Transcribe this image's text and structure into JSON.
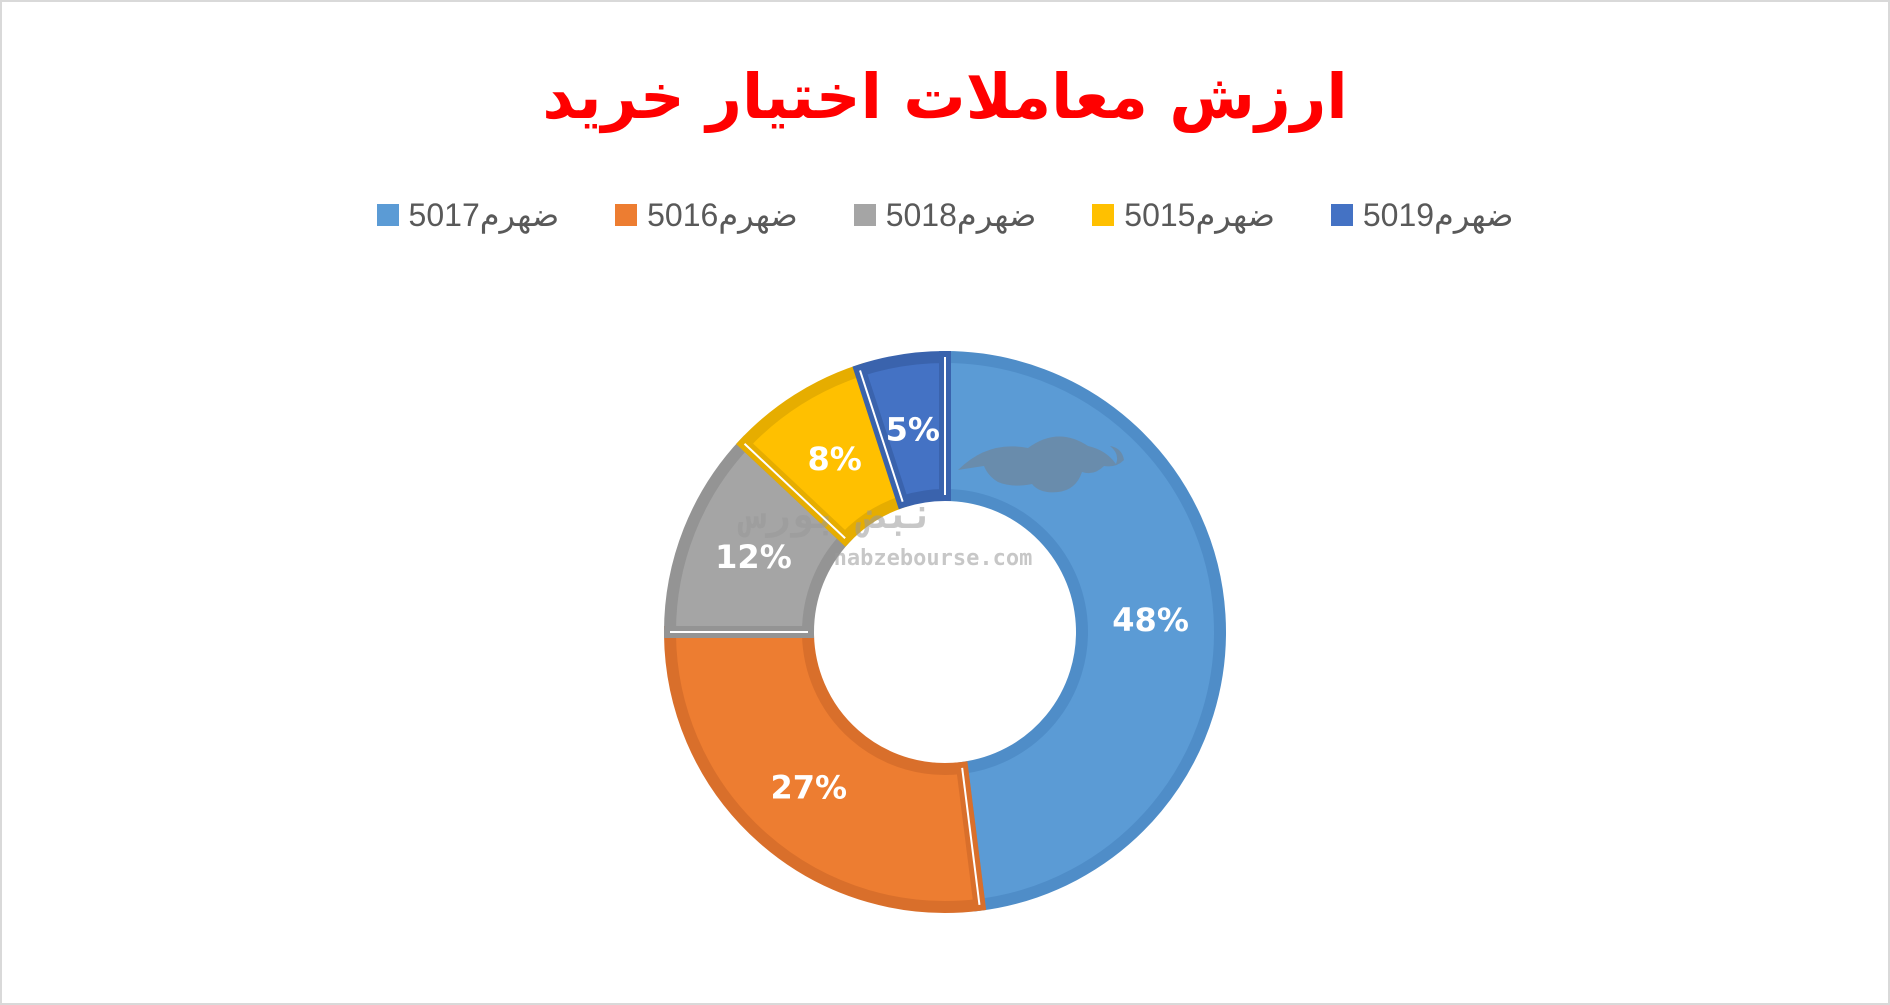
{
  "title": "ارزش معاملات اختیار خرید",
  "watermark": {
    "logo_text": "نبض بورس",
    "url": "nabzebourse.com"
  },
  "chart_data": {
    "type": "pie",
    "subtype": "doughnut",
    "title": "ارزش معاملات اختیار خرید",
    "legend_position": "top",
    "categories": [
      "ضهرم5017",
      "ضهرم5016",
      "ضهرم5018",
      "ضهرم5015",
      "ضهرم5019"
    ],
    "values": [
      48,
      27,
      12,
      8,
      5
    ],
    "labels": [
      "48%",
      "27%",
      "12%",
      "8%",
      "5%"
    ],
    "colors": [
      "#5b9bd5",
      "#ed7d31",
      "#a5a5a5",
      "#ffc000",
      "#4472c4"
    ],
    "border_colors": [
      "#4f8dc8",
      "#d96f2b",
      "#949494",
      "#e6ad00",
      "#3a63ad"
    ]
  }
}
